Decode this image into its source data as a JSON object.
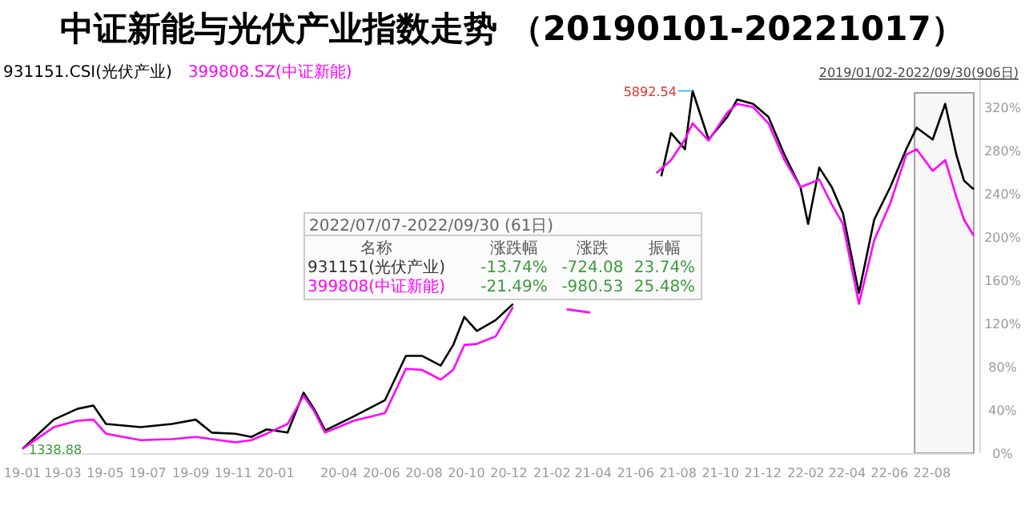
{
  "chart_data": {
    "type": "line",
    "title": "中证新能与光伏产业指数走势 （20190101-20221017）",
    "xlim": [
      "2019-01-02",
      "2022-09-30"
    ],
    "xticks": [
      {
        "value": "2019-01-02",
        "label": "19-01"
      },
      {
        "value": "2019-03-01",
        "label": "19-03"
      },
      {
        "value": "2019-05-01",
        "label": "19-05"
      },
      {
        "value": "2019-07-01",
        "label": "19-07"
      },
      {
        "value": "2019-09-01",
        "label": "19-09"
      },
      {
        "value": "2019-11-01",
        "label": "19-11"
      },
      {
        "value": "2020-01-01",
        "label": "20-01"
      },
      {
        "value": "2020-04-01",
        "label": "20-04"
      },
      {
        "value": "2020-06-01",
        "label": "20-06"
      },
      {
        "value": "2020-08-01",
        "label": "20-08"
      },
      {
        "value": "2020-10-01",
        "label": "20-10"
      },
      {
        "value": "2020-12-01",
        "label": "20-12"
      },
      {
        "value": "2021-02-01",
        "label": "21-02"
      },
      {
        "value": "2021-04-01",
        "label": "21-04"
      },
      {
        "value": "2021-06-01",
        "label": "21-06"
      },
      {
        "value": "2021-08-01",
        "label": "21-08"
      },
      {
        "value": "2021-10-01",
        "label": "21-10"
      },
      {
        "value": "2021-12-01",
        "label": "21-12"
      },
      {
        "value": "2022-02-01",
        "label": "22-02"
      },
      {
        "value": "2022-04-01",
        "label": "22-04"
      },
      {
        "value": "2022-06-01",
        "label": "22-06"
      },
      {
        "value": "2022-08-01",
        "label": "22-08"
      }
    ],
    "ylim": [
      0,
      345
    ],
    "yticks": [
      {
        "value": 0,
        "label": "0%"
      },
      {
        "value": 40,
        "label": "40%"
      },
      {
        "value": 80,
        "label": "80%"
      },
      {
        "value": 120,
        "label": "120%"
      },
      {
        "value": 160,
        "label": "160%"
      },
      {
        "value": 200,
        "label": "200%"
      },
      {
        "value": 240,
        "label": "240%"
      },
      {
        "value": 280,
        "label": "280%"
      },
      {
        "value": 320,
        "label": "320%"
      }
    ],
    "legend": "top left",
    "grid": false,
    "series": [
      {
        "name": "931151.CSI(光伏产业)",
        "color": "#000000",
        "x": [
          "2019-01-02",
          "2019-02-16",
          "2019-03-22",
          "2019-04-14",
          "2019-05-02",
          "2019-06-21",
          "2019-08-05",
          "2019-09-08",
          "2019-10-01",
          "2019-11-04",
          "2019-11-27",
          "2019-12-19",
          "2020-01-18",
          "2020-02-10",
          "2020-02-25",
          "2020-03-12",
          "2020-04-22",
          "2020-06-06",
          "2020-07-06",
          "2020-07-29",
          "2020-08-25",
          "2020-09-12",
          "2020-09-28",
          "2020-10-16",
          "2020-11-12",
          "2020-12-07",
          "2021-01-15",
          "2021-06-15",
          "2021-07-08",
          "2021-07-22",
          "2021-08-11",
          "2021-08-22",
          "2021-09-14",
          "2021-10-11",
          "2021-10-25",
          "2021-11-17",
          "2021-12-09",
          "2022-01-01",
          "2022-01-24",
          "2022-02-04",
          "2022-02-20",
          "2022-03-10",
          "2022-03-26",
          "2022-04-18",
          "2022-05-10",
          "2022-06-02",
          "2022-06-25",
          "2022-07-10",
          "2022-08-02",
          "2022-08-20",
          "2022-09-05",
          "2022-09-16",
          "2022-09-30"
        ],
        "values": [
          4,
          31,
          41,
          44,
          27,
          24,
          27,
          31,
          19,
          18,
          15,
          22,
          19,
          56,
          41,
          21,
          34,
          49,
          90,
          90,
          81,
          100,
          126,
          113,
          123,
          138,
          null,
          null,
          256,
          296,
          281,
          335,
          290,
          311,
          327,
          323,
          311,
          276,
          246,
          212,
          264,
          246,
          222,
          148,
          216,
          246,
          281,
          301,
          290,
          323,
          276,
          252,
          244
        ]
      },
      {
        "name": "399808.SZ(中证新能)",
        "color": "#ff00ff",
        "x": [
          "2019-01-02",
          "2019-02-16",
          "2019-03-22",
          "2019-04-14",
          "2019-05-02",
          "2019-06-21",
          "2019-08-05",
          "2019-09-08",
          "2019-10-01",
          "2019-11-04",
          "2019-11-27",
          "2019-12-19",
          "2020-01-18",
          "2020-02-10",
          "2020-02-25",
          "2020-03-12",
          "2020-04-22",
          "2020-06-06",
          "2020-07-06",
          "2020-07-29",
          "2020-08-25",
          "2020-09-12",
          "2020-09-28",
          "2020-10-16",
          "2020-11-12",
          "2020-12-07",
          "2021-01-15",
          "2021-02-22",
          "2021-03-28",
          "2021-05-01",
          "2021-07-01",
          "2021-07-22",
          "2021-08-11",
          "2021-08-22",
          "2021-09-14",
          "2021-10-11",
          "2021-10-25",
          "2021-11-17",
          "2021-12-09",
          "2022-01-01",
          "2022-01-24",
          "2022-02-20",
          "2022-03-10",
          "2022-03-26",
          "2022-04-18",
          "2022-05-10",
          "2022-06-02",
          "2022-06-25",
          "2022-07-10",
          "2022-08-02",
          "2022-08-20",
          "2022-09-05",
          "2022-09-16",
          "2022-09-30"
        ],
        "values": [
          4,
          24,
          30,
          31,
          18,
          12,
          13,
          15,
          13,
          10,
          12,
          18,
          27,
          53,
          39,
          19,
          30,
          37,
          78,
          77,
          68,
          77,
          100,
          101,
          108,
          135,
          null,
          133,
          130,
          null,
          259,
          271,
          290,
          305,
          289,
          315,
          323,
          320,
          305,
          271,
          246,
          253,
          230,
          212,
          138,
          197,
          231,
          276,
          281,
          261,
          271,
          237,
          216,
          201
        ]
      }
    ],
    "bands": [
      {
        "axis": "x",
        "from": "2022-07-07",
        "to": "2022-09-30",
        "color": "#a0a0a0"
      }
    ],
    "annotations": [
      {
        "text": "5892.54",
        "x": "2021-08-22",
        "y": 335
      },
      {
        "text": "1338.88",
        "x": "2019-01-02",
        "y": 4
      },
      "2019/01/02-2022/09/30(906日)",
      "2022/07/07-2022/09/30 (61日)",
      "名称",
      "涨跌幅",
      "涨跌",
      "振幅",
      "931151(光伏产业)",
      "-13.74%",
      "-724.08",
      "23.74%",
      "399808(中证新能)",
      "-21.49%",
      "-980.53",
      "25.48%"
    ]
  }
}
